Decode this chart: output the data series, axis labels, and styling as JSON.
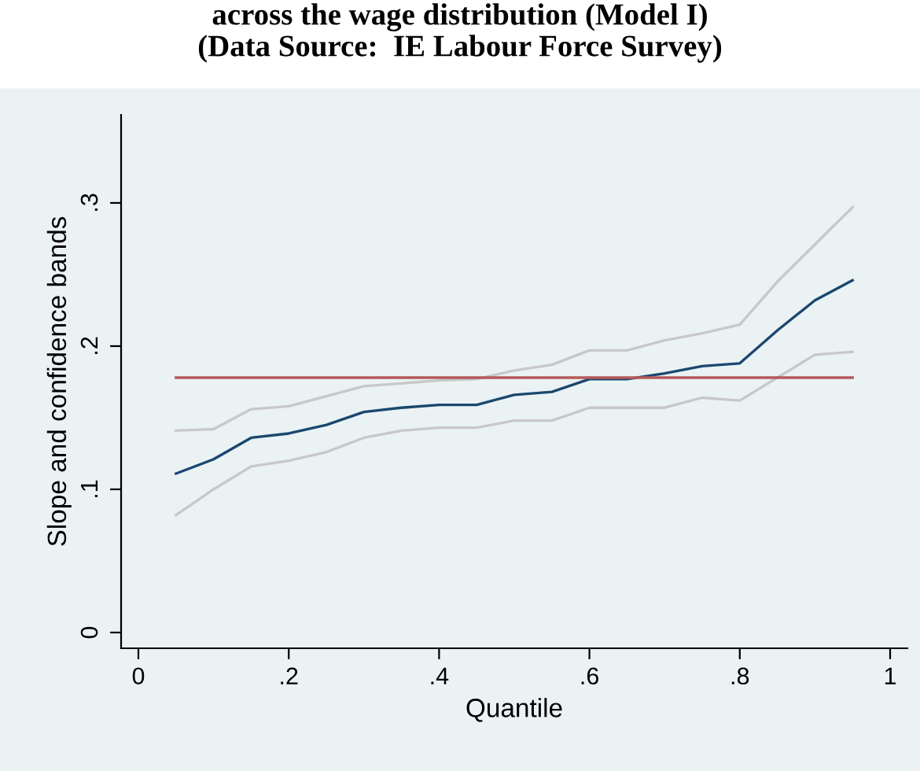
{
  "chart_data": {
    "type": "line",
    "title": "across the wage distribution (Model I)",
    "subtitle": "(Data Source:  IE Labour Force Survey)",
    "xlabel": "Quantile",
    "ylabel": "Slope and confidence bands",
    "x": [
      0.05,
      0.1,
      0.15,
      0.2,
      0.25,
      0.3,
      0.35,
      0.4,
      0.45,
      0.5,
      0.55,
      0.6,
      0.65,
      0.7,
      0.75,
      0.8,
      0.85,
      0.9,
      0.95
    ],
    "series": [
      {
        "color": "#c8c8c8",
        "values": [
          0.141,
          0.142,
          0.156,
          0.158,
          0.165,
          0.172,
          0.174,
          0.176,
          0.177,
          0.183,
          0.187,
          0.197,
          0.197,
          0.204,
          0.209,
          0.215,
          0.245,
          0.271,
          0.297
        ]
      },
      {
        "color": "#c8c8c8",
        "values": [
          0.082,
          0.1,
          0.116,
          0.12,
          0.126,
          0.136,
          0.141,
          0.143,
          0.143,
          0.148,
          0.148,
          0.157,
          0.157,
          0.157,
          0.164,
          0.162,
          0.178,
          0.194,
          0.196
        ]
      },
      {
        "color": "#1a476f",
        "values": [
          0.111,
          0.121,
          0.136,
          0.139,
          0.145,
          0.154,
          0.157,
          0.159,
          0.159,
          0.166,
          0.168,
          0.177,
          0.177,
          0.181,
          0.186,
          0.188,
          0.211,
          0.232,
          0.246
        ]
      },
      {
        "color": "#b5585a",
        "x": [
          0.05,
          0.95
        ],
        "values": [
          0.178,
          0.178
        ]
      }
    ],
    "xlim": [
      -0.023,
      1.023
    ],
    "ylim": [
      -0.011,
      0.3615
    ],
    "xticks": [
      0,
      {
        "value": 0.2,
        "label": ".2"
      },
      {
        "value": 0.4,
        "label": ".4"
      },
      {
        "value": 0.6,
        "label": ".6"
      },
      {
        "value": 0.8,
        "label": ".8"
      },
      1
    ],
    "yticks": [
      0,
      {
        "value": 0.1,
        "label": ".1"
      },
      {
        "value": 0.2,
        "label": ".2"
      },
      {
        "value": 0.3,
        "label": ".3"
      }
    ],
    "grid": false
  }
}
